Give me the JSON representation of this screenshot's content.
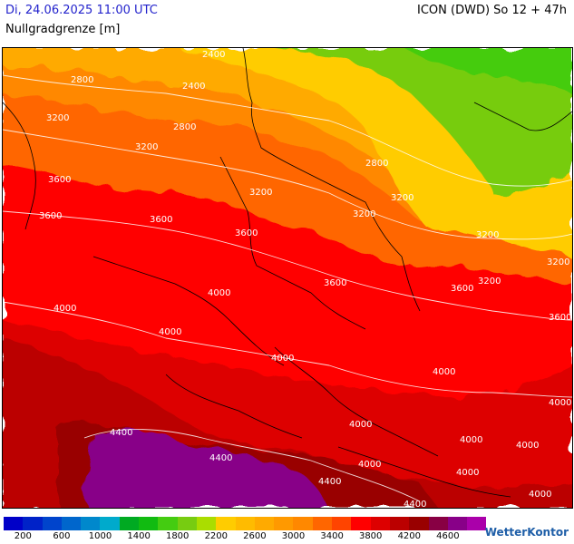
{
  "header": {
    "date": "Di, 24.06.2025 11:00 UTC",
    "model": "ICON (DWD) So 12 + 47h",
    "subtitle": "Nullgradgrenze [m]"
  },
  "map": {
    "contour_labels": [
      "2400",
      "2800",
      "2400",
      "2800",
      "3200",
      "2800",
      "3200",
      "3200",
      "3600",
      "3200",
      "3200",
      "3600",
      "3600",
      "3200",
      "3200",
      "3600",
      "3600",
      "3200",
      "3600",
      "4000",
      "4000",
      "3600",
      "4000",
      "4000",
      "4000",
      "4000",
      "4000",
      "4000",
      "4400",
      "4400",
      "4000",
      "4000",
      "4400",
      "4000",
      "4400",
      "4000"
    ]
  },
  "legend": {
    "colors": [
      "#0000c8",
      "#0022c8",
      "#0044cc",
      "#0066cc",
      "#0088cc",
      "#00aacc",
      "#00aa22",
      "#11bb11",
      "#44cc11",
      "#77cc11",
      "#aadd00",
      "#ffcc00",
      "#ffbb00",
      "#ffaa00",
      "#ff9900",
      "#ff8800",
      "#ff6600",
      "#ff4400",
      "#ff0000",
      "#dd0000",
      "#bb0000",
      "#990000",
      "#880044",
      "#880088",
      "#aa00aa"
    ],
    "labels": [
      "200",
      "600",
      "1000",
      "1400",
      "1800",
      "2200",
      "2600",
      "3000",
      "3400",
      "3800",
      "4200",
      "4600"
    ]
  },
  "logo": {
    "text": "WetterKontor"
  }
}
